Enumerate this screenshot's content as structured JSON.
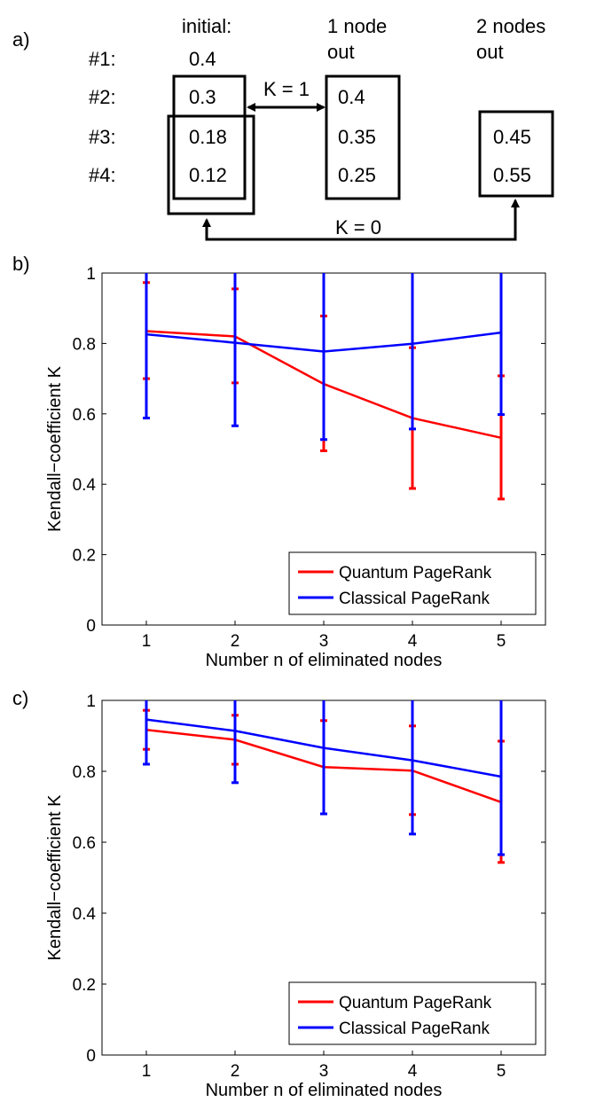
{
  "panel_a": {
    "panel_label": "a)",
    "headers": {
      "initial": "initial:",
      "one_line1": "1 node",
      "one_line2": "out",
      "two_line1": "2 nodes",
      "two_line2": "out"
    },
    "rows": [
      "#1:",
      "#2:",
      "#3:",
      "#4:"
    ],
    "initial": [
      "0.4",
      "0.3",
      "0.18",
      "0.12"
    ],
    "one_node_out": [
      "0.4",
      "0.35",
      "0.25"
    ],
    "two_nodes_out": [
      "0.45",
      "0.55"
    ],
    "k1_label": "K = 1",
    "k0_label": "K = 0"
  },
  "chart_data": [
    {
      "type": "line",
      "panel_label": "b)",
      "xlabel": "Number n of eliminated nodes",
      "ylabel": "Kendall−coefficient K",
      "x": [
        1,
        2,
        3,
        4,
        5
      ],
      "xticks": [
        "1",
        "2",
        "3",
        "4",
        "5"
      ],
      "yticks": [
        "0",
        "0.2",
        "0.4",
        "0.6",
        "0.8",
        "1"
      ],
      "xlim": [
        0.5,
        5.5
      ],
      "ylim": [
        0,
        1
      ],
      "legend_position": "bottom-right",
      "series": [
        {
          "name": "Quantum PageRank",
          "color": "#ff0000",
          "values": [
            0.835,
            0.82,
            0.685,
            0.588,
            0.532
          ],
          "err_low": [
            0.7,
            0.688,
            0.495,
            0.388,
            0.358
          ],
          "err_high": [
            0.973,
            0.955,
            0.878,
            0.788,
            0.708
          ]
        },
        {
          "name": "Classical PageRank",
          "color": "#0000ff",
          "values": [
            0.826,
            0.802,
            0.777,
            0.799,
            0.831
          ],
          "err_low": [
            0.588,
            0.566,
            0.527,
            0.557,
            0.598
          ],
          "err_high": [
            1.0,
            1.0,
            1.0,
            1.0,
            1.0
          ]
        }
      ]
    },
    {
      "type": "line",
      "panel_label": "c)",
      "xlabel": "Number n of eliminated nodes",
      "ylabel": "Kendall−coefficient K",
      "x": [
        1,
        2,
        3,
        4,
        5
      ],
      "xticks": [
        "1",
        "2",
        "3",
        "4",
        "5"
      ],
      "yticks": [
        "0",
        "0.2",
        "0.4",
        "0.6",
        "0.8",
        "1"
      ],
      "xlim": [
        0.5,
        5.5
      ],
      "ylim": [
        0,
        1
      ],
      "legend_position": "bottom-right",
      "series": [
        {
          "name": "Quantum PageRank",
          "color": "#ff0000",
          "values": [
            0.917,
            0.889,
            0.812,
            0.802,
            0.713
          ],
          "err_low": [
            0.862,
            0.82,
            0.68,
            0.678,
            0.543
          ],
          "err_high": [
            0.972,
            0.958,
            0.943,
            0.928,
            0.885
          ]
        },
        {
          "name": "Classical PageRank",
          "color": "#0000ff",
          "values": [
            0.946,
            0.914,
            0.866,
            0.831,
            0.785
          ],
          "err_low": [
            0.82,
            0.768,
            0.68,
            0.623,
            0.565
          ],
          "err_high": [
            1.0,
            1.0,
            1.0,
            1.0,
            1.0
          ]
        }
      ]
    }
  ]
}
